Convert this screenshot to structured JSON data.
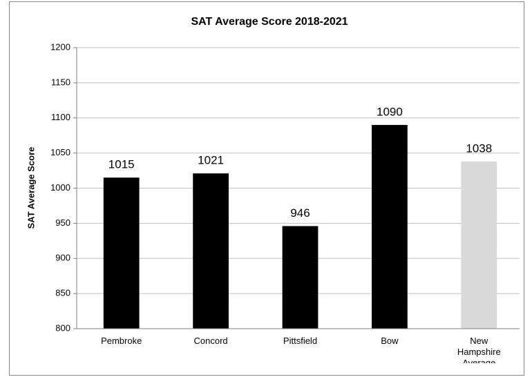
{
  "chart_data": {
    "type": "bar",
    "title": "SAT Average Score 2018-2021",
    "y_label": "SAT Average Score",
    "categories": [
      "Pembroke",
      "Concord",
      "Pittsfield",
      "Bow",
      "New Hampshire Average"
    ],
    "values": [
      1015,
      1021,
      946,
      1090,
      1038
    ],
    "colors": [
      "#000000",
      "#000000",
      "#000000",
      "#000000",
      "#d9d9d9"
    ],
    "ylim": [
      800,
      1200
    ],
    "yticks": [
      800,
      850,
      900,
      950,
      1000,
      1050,
      1100,
      1150,
      1200
    ],
    "grid": true
  }
}
